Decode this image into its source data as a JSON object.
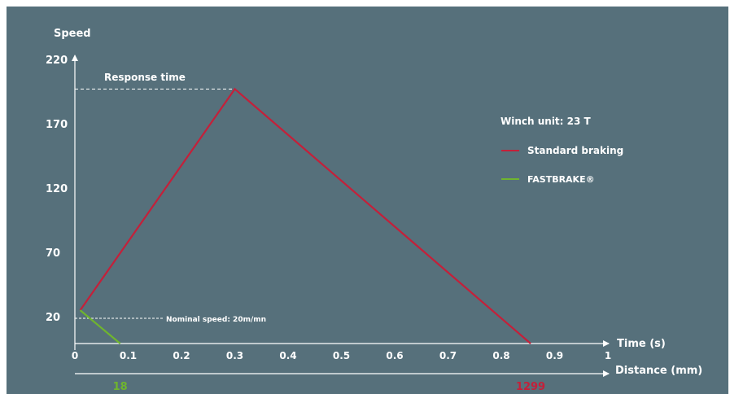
{
  "chart_data": {
    "type": "line",
    "ylabel": "Speed",
    "xlabel": "Time (s)",
    "x2label": "Distance (mm)",
    "ylim": [
      0,
      220
    ],
    "xlim": [
      0,
      1
    ],
    "yticks": [
      "220",
      "170",
      "120",
      "70",
      "20"
    ],
    "ytick_values": [
      220,
      170,
      120,
      70,
      20
    ],
    "xticks": [
      "0",
      "0.1",
      "0.2",
      "0.3",
      "0.4",
      "0.5",
      "0.6",
      "0.7",
      "0.8",
      "0.9",
      "1"
    ],
    "xtick_values": [
      0,
      0.1,
      0.2,
      0.3,
      0.4,
      0.5,
      0.6,
      0.7,
      0.8,
      0.9,
      1
    ],
    "legend_title": "Winch unit: 23 T",
    "series": [
      {
        "name": "Standard braking",
        "color": "#c4203a",
        "x": [
          0.01,
          0.3,
          0.855
        ],
        "y": [
          25,
          197,
          0
        ]
      },
      {
        "name": "FASTBRAKE®",
        "color": "#6fb52e",
        "x": [
          0.01,
          0.085
        ],
        "y": [
          25,
          0
        ]
      }
    ],
    "annotations": {
      "response_time": {
        "text": "Response time",
        "y": 197
      },
      "nominal_speed": {
        "text": "Nominal speed: 20m/mn",
        "y": 20
      }
    },
    "distance_labels": [
      {
        "text": "18",
        "x": 0.085,
        "color": "#6fb52e"
      },
      {
        "text": "1299",
        "x": 0.855,
        "color": "#c4203a"
      }
    ],
    "grid": false,
    "legend_position": "right"
  }
}
